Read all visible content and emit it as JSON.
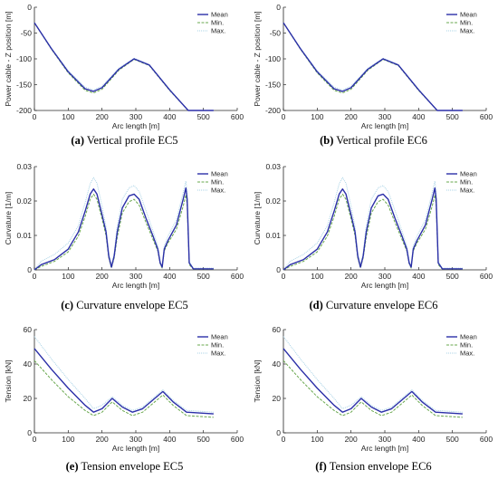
{
  "figure": {
    "captions": [
      {
        "tag": "(a)",
        "text": " Vertical profile EC5"
      },
      {
        "tag": "(b)",
        "text": " Vertical profile EC6"
      },
      {
        "tag": "(c)",
        "text": " Curvature envelope EC5"
      },
      {
        "tag": "(d)",
        "text": " Curvature envelope EC6"
      },
      {
        "tag": "(e)",
        "text": " Tension envelope EC5"
      },
      {
        "tag": "(f)",
        "text": " Tension envelope EC6"
      }
    ],
    "colors": {
      "mean": "#2b2fa8",
      "min": "#6aa84f",
      "max": "#a9d3e6",
      "axis": "#262626"
    }
  },
  "chart_data": [
    {
      "type": "line",
      "xlabel": "Arc length [m]",
      "ylabel": "Power cable - Z position [m]",
      "xlim": [
        0,
        600
      ],
      "ylim": [
        -200,
        0
      ],
      "xticks": [
        "0",
        "100",
        "200",
        "300",
        "400",
        "500",
        "600"
      ],
      "yticks": [
        "-200",
        "-150",
        "-100",
        "-50",
        "0"
      ],
      "legend": [
        "Mean",
        "Min.",
        "Max."
      ],
      "legend_position": "top-right",
      "series": [
        {
          "name": "Mean",
          "x": [
            0,
            50,
            100,
            150,
            175,
            200,
            250,
            295,
            340,
            400,
            455,
            530
          ],
          "y": [
            -30,
            -80,
            -125,
            -158,
            -163,
            -156,
            -120,
            -100,
            -112,
            -160,
            -200,
            -200
          ]
        },
        {
          "name": "Min.",
          "x": [
            0,
            50,
            100,
            150,
            175,
            200,
            250,
            295,
            340,
            400,
            455,
            530
          ],
          "y": [
            -30,
            -81,
            -127,
            -161,
            -166,
            -159,
            -122,
            -101,
            -113,
            -161,
            -200,
            -200
          ]
        },
        {
          "name": "Max.",
          "x": [
            0,
            50,
            100,
            150,
            175,
            200,
            250,
            295,
            340,
            400,
            455,
            530
          ],
          "y": [
            -30,
            -79,
            -123,
            -155,
            -160,
            -153,
            -118,
            -99,
            -111,
            -159,
            -200,
            -200
          ]
        }
      ]
    },
    {
      "type": "line",
      "xlabel": "Arc length [m]",
      "ylabel": "Power cable - Z position [m]",
      "xlim": [
        0,
        600
      ],
      "ylim": [
        -200,
        0
      ],
      "xticks": [
        "0",
        "100",
        "200",
        "300",
        "400",
        "500",
        "600"
      ],
      "yticks": [
        "-200",
        "-150",
        "-100",
        "-50",
        "0"
      ],
      "legend": [
        "Mean",
        "Min.",
        "Max."
      ],
      "legend_position": "top-right",
      "series": [
        {
          "name": "Mean",
          "x": [
            0,
            50,
            100,
            150,
            175,
            200,
            250,
            295,
            340,
            400,
            455,
            530
          ],
          "y": [
            -30,
            -80,
            -125,
            -158,
            -163,
            -156,
            -120,
            -100,
            -112,
            -160,
            -200,
            -200
          ]
        },
        {
          "name": "Min.",
          "x": [
            0,
            50,
            100,
            150,
            175,
            200,
            250,
            295,
            340,
            400,
            455,
            530
          ],
          "y": [
            -30,
            -81,
            -127,
            -161,
            -166,
            -159,
            -122,
            -101,
            -113,
            -161,
            -200,
            -200
          ]
        },
        {
          "name": "Max.",
          "x": [
            0,
            50,
            100,
            150,
            175,
            200,
            250,
            295,
            340,
            400,
            455,
            530
          ],
          "y": [
            -30,
            -79,
            -123,
            -155,
            -160,
            -153,
            -118,
            -99,
            -111,
            -159,
            -200,
            -200
          ]
        }
      ]
    },
    {
      "type": "line",
      "xlabel": "Arc length [m]",
      "ylabel": "Curvature [1/m]",
      "xlim": [
        0,
        600
      ],
      "ylim": [
        0,
        0.03
      ],
      "xticks": [
        "0",
        "100",
        "200",
        "300",
        "400",
        "500",
        "600"
      ],
      "yticks": [
        "0",
        "0.01",
        "0.02",
        "0.03"
      ],
      "legend": [
        "Mean",
        "Min.",
        "Max."
      ],
      "legend_position": "top-right",
      "series": [
        {
          "name": "Mean",
          "x": [
            0,
            20,
            60,
            100,
            130,
            150,
            165,
            175,
            185,
            200,
            212,
            220,
            228,
            236,
            245,
            260,
            280,
            295,
            310,
            330,
            350,
            365,
            372,
            378,
            384,
            395,
            420,
            440,
            448,
            452,
            458,
            470,
            530
          ],
          "y": [
            0,
            0.0015,
            0.003,
            0.006,
            0.011,
            0.017,
            0.022,
            0.0235,
            0.022,
            0.016,
            0.011,
            0.004,
            0.0008,
            0.004,
            0.011,
            0.018,
            0.0215,
            0.022,
            0.0205,
            0.015,
            0.01,
            0.006,
            0.002,
            0.0008,
            0.006,
            0.0085,
            0.013,
            0.0205,
            0.0238,
            0.0205,
            0.002,
            0.0003,
            0.0003
          ]
        },
        {
          "name": "Min.",
          "x": [
            0,
            20,
            60,
            100,
            130,
            150,
            165,
            175,
            185,
            200,
            212,
            220,
            228,
            236,
            245,
            260,
            280,
            295,
            310,
            330,
            350,
            365,
            372,
            378,
            384,
            395,
            420,
            440,
            448,
            452,
            458,
            470,
            530
          ],
          "y": [
            0,
            0.001,
            0.0025,
            0.0052,
            0.0098,
            0.0155,
            0.0205,
            0.022,
            0.0205,
            0.0148,
            0.01,
            0.0035,
            0.0005,
            0.0035,
            0.0095,
            0.0165,
            0.0198,
            0.0205,
            0.0188,
            0.0138,
            0.009,
            0.0055,
            0.0018,
            0.0005,
            0.0055,
            0.0078,
            0.0118,
            0.0185,
            0.0218,
            0.019,
            0.0015,
            0.0002,
            0.0002
          ]
        },
        {
          "name": "Max.",
          "x": [
            0,
            20,
            60,
            100,
            130,
            150,
            165,
            175,
            185,
            200,
            212,
            220,
            228,
            236,
            245,
            260,
            280,
            295,
            310,
            330,
            350,
            365,
            372,
            378,
            384,
            395,
            420,
            440,
            448,
            452,
            458,
            470,
            530
          ],
          "y": [
            0,
            0.0025,
            0.0045,
            0.0078,
            0.0128,
            0.0195,
            0.025,
            0.0268,
            0.0252,
            0.0185,
            0.0125,
            0.005,
            0.0012,
            0.005,
            0.0128,
            0.0205,
            0.0238,
            0.0245,
            0.0228,
            0.0172,
            0.0115,
            0.007,
            0.0025,
            0.001,
            0.007,
            0.0098,
            0.0145,
            0.0225,
            0.0258,
            0.0225,
            0.0025,
            0.0005,
            0.0005
          ]
        }
      ]
    },
    {
      "type": "line",
      "xlabel": "Arc length [m]",
      "ylabel": "Curvature [1/m]",
      "xlim": [
        0,
        600
      ],
      "ylim": [
        0,
        0.03
      ],
      "xticks": [
        "0",
        "100",
        "200",
        "300",
        "400",
        "500",
        "600"
      ],
      "yticks": [
        "0",
        "0.01",
        "0.02",
        "0.03"
      ],
      "legend": [
        "Mean",
        "Min.",
        "Max."
      ],
      "legend_position": "top-right",
      "series": [
        {
          "name": "Mean",
          "x": [
            0,
            20,
            60,
            100,
            130,
            150,
            165,
            175,
            185,
            200,
            212,
            220,
            228,
            236,
            245,
            260,
            280,
            295,
            310,
            330,
            350,
            365,
            372,
            378,
            384,
            395,
            420,
            440,
            448,
            452,
            458,
            470,
            530
          ],
          "y": [
            0,
            0.0015,
            0.003,
            0.006,
            0.011,
            0.017,
            0.022,
            0.0235,
            0.022,
            0.016,
            0.011,
            0.004,
            0.0008,
            0.004,
            0.011,
            0.018,
            0.0215,
            0.022,
            0.0205,
            0.015,
            0.01,
            0.006,
            0.002,
            0.0008,
            0.006,
            0.0085,
            0.013,
            0.0205,
            0.0238,
            0.0205,
            0.002,
            0.0003,
            0.0003
          ]
        },
        {
          "name": "Min.",
          "x": [
            0,
            20,
            60,
            100,
            130,
            150,
            165,
            175,
            185,
            200,
            212,
            220,
            228,
            236,
            245,
            260,
            280,
            295,
            310,
            330,
            350,
            365,
            372,
            378,
            384,
            395,
            420,
            440,
            448,
            452,
            458,
            470,
            530
          ],
          "y": [
            0,
            0.001,
            0.0025,
            0.0052,
            0.0098,
            0.0155,
            0.0205,
            0.022,
            0.0205,
            0.0148,
            0.01,
            0.0035,
            0.0005,
            0.0035,
            0.0095,
            0.0165,
            0.0198,
            0.0205,
            0.0188,
            0.0138,
            0.009,
            0.0055,
            0.0018,
            0.0005,
            0.0055,
            0.0078,
            0.0118,
            0.0185,
            0.0218,
            0.019,
            0.0015,
            0.0002,
            0.0002
          ]
        },
        {
          "name": "Max.",
          "x": [
            0,
            20,
            60,
            100,
            130,
            150,
            165,
            175,
            185,
            200,
            212,
            220,
            228,
            236,
            245,
            260,
            280,
            295,
            310,
            330,
            350,
            365,
            372,
            378,
            384,
            395,
            420,
            440,
            448,
            452,
            458,
            470,
            530
          ],
          "y": [
            0,
            0.0025,
            0.0045,
            0.0078,
            0.0128,
            0.0195,
            0.025,
            0.0268,
            0.0252,
            0.0185,
            0.0125,
            0.005,
            0.0012,
            0.005,
            0.0128,
            0.0205,
            0.0238,
            0.0245,
            0.0228,
            0.0172,
            0.0115,
            0.007,
            0.0025,
            0.001,
            0.007,
            0.0098,
            0.0145,
            0.0225,
            0.0258,
            0.0225,
            0.0025,
            0.0005,
            0.0005
          ]
        }
      ]
    },
    {
      "type": "line",
      "xlabel": "Arc length [m]",
      "ylabel": "Tension [kN]",
      "xlim": [
        0,
        600
      ],
      "ylim": [
        0,
        60
      ],
      "xticks": [
        "0",
        "100",
        "200",
        "300",
        "400",
        "500",
        "600"
      ],
      "yticks": [
        "0",
        "20",
        "40",
        "60"
      ],
      "legend": [
        "Mean",
        "Min.",
        "Max."
      ],
      "legend_position": "top-right",
      "series": [
        {
          "name": "Mean",
          "x": [
            0,
            50,
            100,
            150,
            175,
            200,
            230,
            260,
            290,
            320,
            350,
            380,
            410,
            450,
            530
          ],
          "y": [
            49,
            37,
            26,
            16,
            12,
            14,
            20,
            15,
            12,
            14,
            19,
            24,
            18,
            12,
            11
          ]
        },
        {
          "name": "Min.",
          "x": [
            0,
            50,
            100,
            150,
            175,
            200,
            230,
            260,
            290,
            320,
            350,
            380,
            410,
            450,
            530
          ],
          "y": [
            42,
            31,
            21,
            13,
            10,
            12,
            18,
            13,
            10,
            12,
            17,
            22,
            16,
            10,
            9
          ]
        },
        {
          "name": "Max.",
          "x": [
            0,
            50,
            100,
            150,
            175,
            200,
            230,
            260,
            290,
            320,
            350,
            380,
            410,
            450,
            530
          ],
          "y": [
            56,
            43,
            31,
            20,
            14,
            16,
            21,
            16,
            13,
            15,
            20,
            25,
            19,
            13,
            12
          ]
        }
      ]
    },
    {
      "type": "line",
      "xlabel": "Arc length [m]",
      "ylabel": "Tension [kN]",
      "xlim": [
        0,
        600
      ],
      "ylim": [
        0,
        60
      ],
      "xticks": [
        "0",
        "100",
        "200",
        "300",
        "400",
        "500",
        "600"
      ],
      "yticks": [
        "0",
        "20",
        "40",
        "60"
      ],
      "legend": [
        "Mean",
        "Min.",
        "Max."
      ],
      "legend_position": "top-right",
      "series": [
        {
          "name": "Mean",
          "x": [
            0,
            50,
            100,
            150,
            175,
            200,
            230,
            260,
            290,
            320,
            350,
            380,
            410,
            450,
            530
          ],
          "y": [
            49,
            37,
            26,
            16,
            12,
            14,
            20,
            15,
            12,
            14,
            19,
            24,
            18,
            12,
            11
          ]
        },
        {
          "name": "Min.",
          "x": [
            0,
            50,
            100,
            150,
            175,
            200,
            230,
            260,
            290,
            320,
            350,
            380,
            410,
            450,
            530
          ],
          "y": [
            42,
            31,
            21,
            13,
            10,
            12,
            18,
            13,
            10,
            12,
            17,
            22,
            16,
            10,
            9
          ]
        },
        {
          "name": "Max.",
          "x": [
            0,
            50,
            100,
            150,
            175,
            200,
            230,
            260,
            290,
            320,
            350,
            380,
            410,
            450,
            530
          ],
          "y": [
            56,
            43,
            31,
            20,
            14,
            16,
            21,
            16,
            13,
            15,
            20,
            25,
            19,
            13,
            12
          ]
        }
      ]
    }
  ]
}
